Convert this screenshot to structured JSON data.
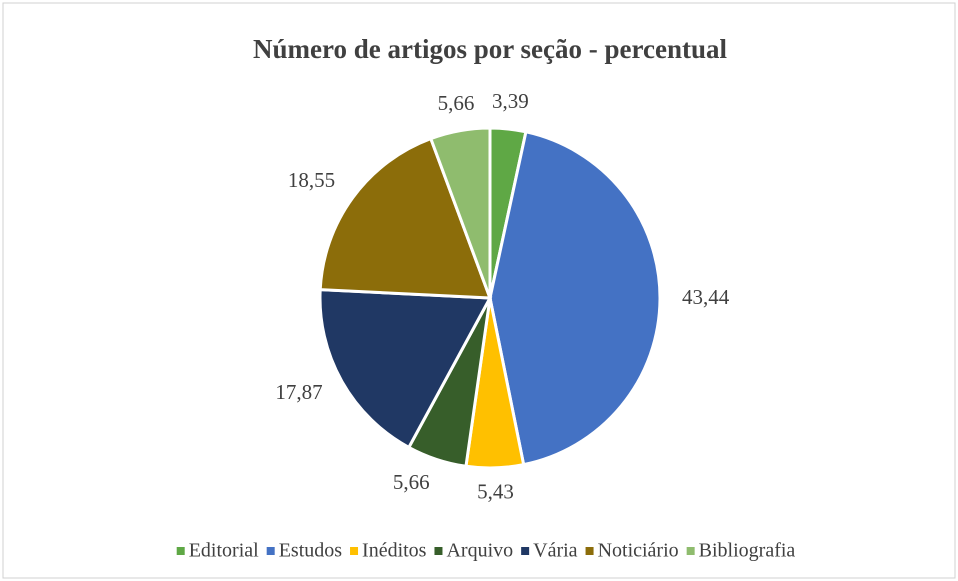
{
  "chart_data": {
    "type": "pie",
    "title": "Número de artigos por seção - percentual",
    "categories": [
      "Editorial",
      "Estudos",
      "Inéditos",
      "Arquivo",
      "Vária",
      "Noticiário",
      "Bibliografia"
    ],
    "values": [
      3.39,
      43.44,
      5.43,
      5.66,
      17.87,
      18.55,
      5.66
    ],
    "value_labels": [
      "3,39",
      "43,44",
      "5,43",
      "5,66",
      "17,87",
      "18,55",
      "5,66"
    ],
    "colors": [
      "#5fa845",
      "#4472c4",
      "#ffc000",
      "#375e2a",
      "#203864",
      "#8c6d0a",
      "#8fbc6e"
    ],
    "legend": "bottom"
  }
}
